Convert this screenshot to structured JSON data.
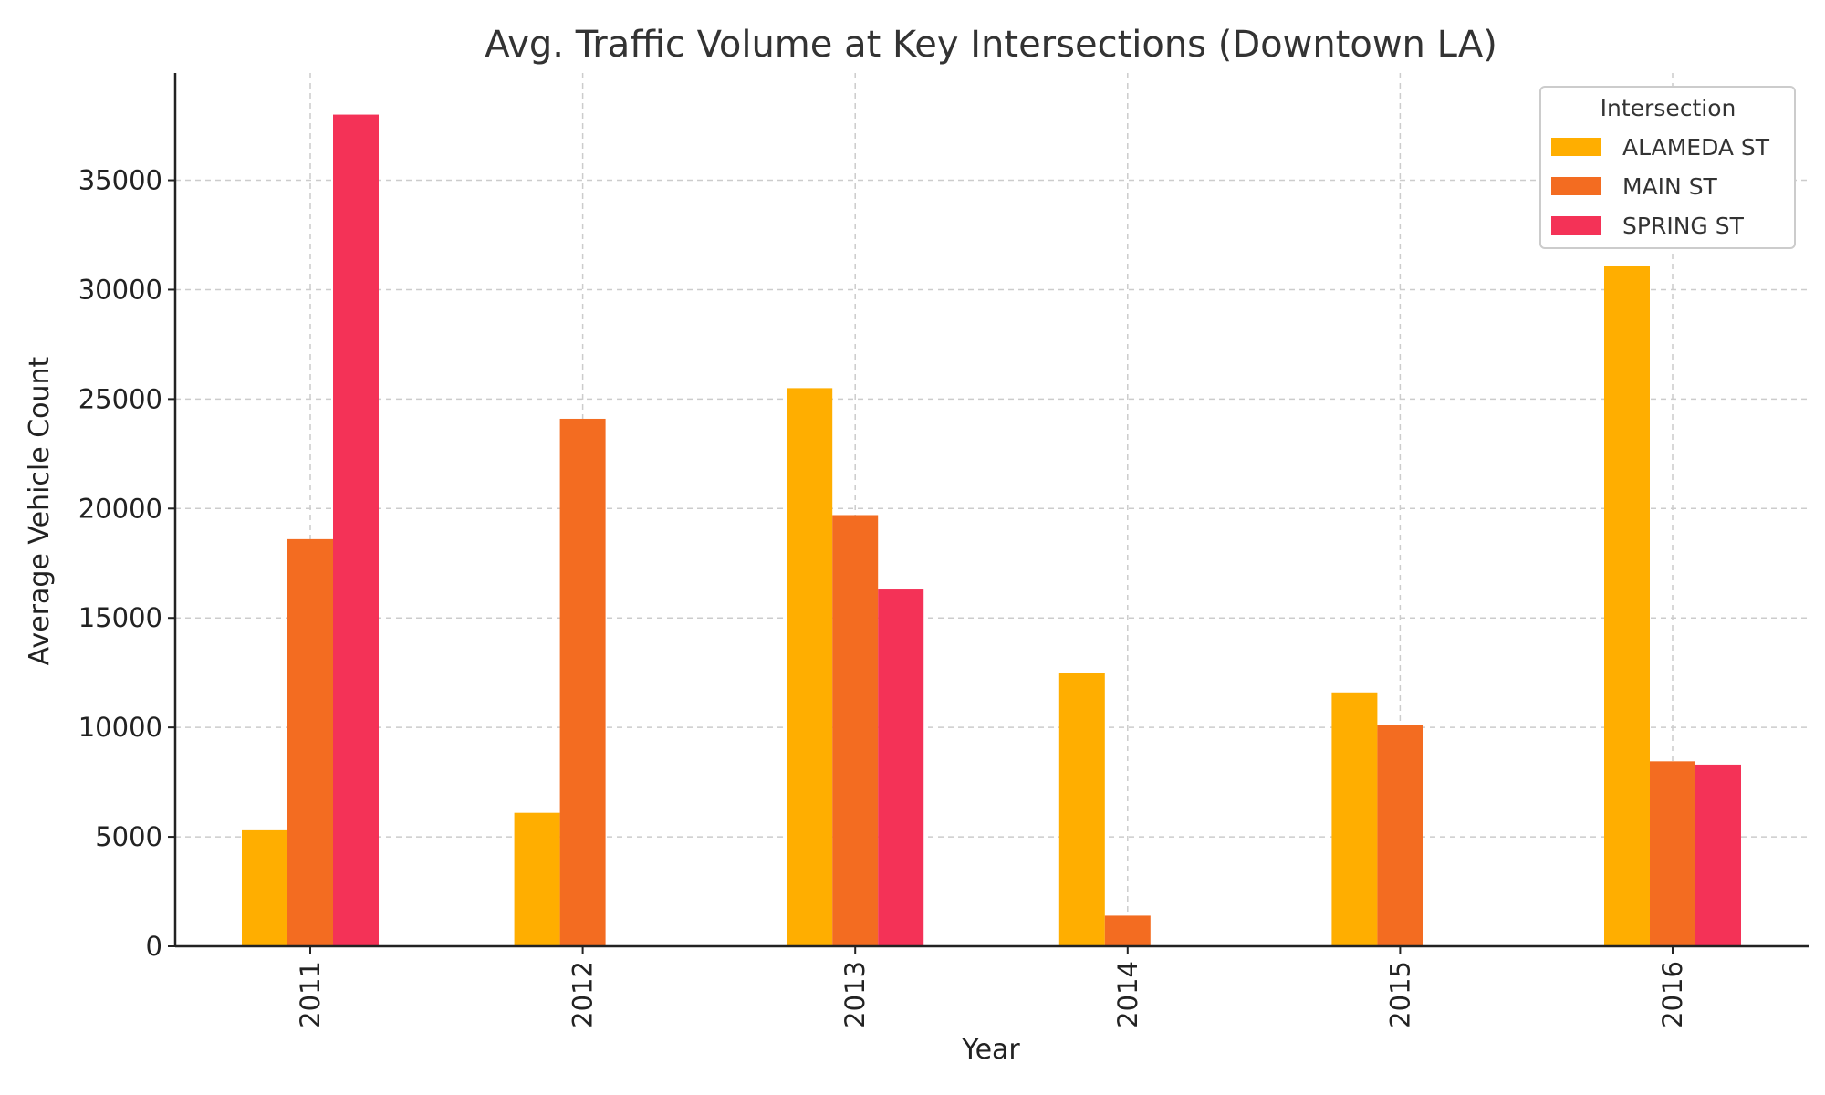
{
  "chart_data": {
    "type": "bar",
    "title": "Avg. Traffic Volume at Key Intersections (Downtown LA)",
    "xlabel": "Year",
    "ylabel": "Average Vehicle Count",
    "categories": [
      "2011",
      "2012",
      "2013",
      "2014",
      "2015",
      "2016"
    ],
    "series": [
      {
        "name": "ALAMEDA ST",
        "color": "#FFAE00",
        "values": [
          5300,
          6100,
          25500,
          12500,
          11600,
          31100
        ]
      },
      {
        "name": "MAIN ST",
        "color": "#F36C21",
        "values": [
          18600,
          24100,
          19700,
          1400,
          10100,
          8450
        ]
      },
      {
        "name": "SPRING ST",
        "color": "#F43257",
        "values": [
          38000,
          null,
          16300,
          null,
          null,
          8300
        ]
      }
    ],
    "ylim": [
      0,
      39900
    ],
    "yticks": [
      0,
      5000,
      10000,
      15000,
      20000,
      25000,
      30000,
      35000
    ],
    "grid": true,
    "legend": {
      "title": "Intersection",
      "position": "top-right"
    }
  }
}
